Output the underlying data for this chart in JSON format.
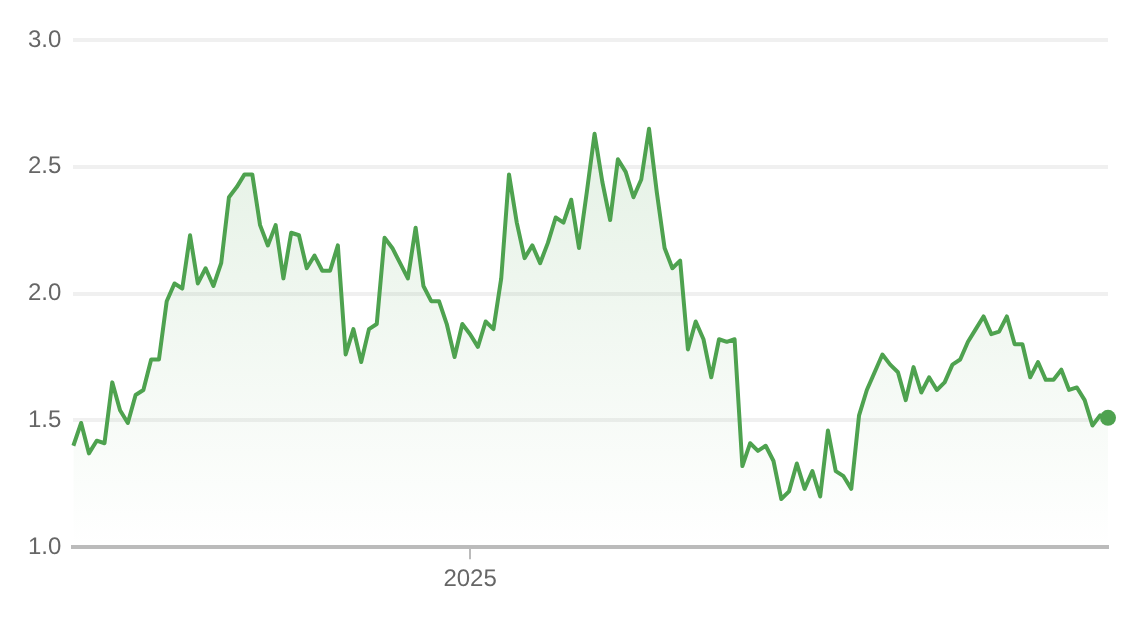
{
  "chart_data": {
    "type": "area",
    "color": "#4ea24f",
    "categories": [
      null,
      null,
      null,
      null,
      null,
      null,
      null,
      null,
      null,
      null,
      null,
      null,
      null,
      null,
      null,
      null,
      null,
      null,
      null,
      null,
      null,
      null,
      null,
      null,
      null,
      null,
      null,
      null,
      null,
      null,
      null,
      null,
      null,
      null,
      null,
      null,
      null,
      null,
      null,
      null,
      null,
      null,
      null,
      null,
      null,
      null,
      null,
      null,
      null,
      null,
      null,
      "2025",
      null,
      null,
      null,
      null,
      null,
      null,
      null,
      null,
      null,
      null,
      null,
      null,
      null,
      null,
      null,
      null,
      null,
      null,
      null,
      null,
      null,
      null,
      null,
      null,
      null,
      null,
      null,
      null,
      null,
      null,
      null,
      null,
      null,
      null,
      null,
      null,
      null,
      null,
      null,
      null,
      null,
      null,
      null,
      null,
      null,
      null,
      null,
      null,
      null,
      null,
      null,
      null,
      null,
      null,
      null,
      null,
      null,
      null,
      null,
      null,
      null,
      null,
      null,
      null,
      null,
      null,
      null,
      null,
      null,
      null,
      null,
      null,
      null,
      null,
      null,
      null,
      null,
      null,
      null,
      null,
      null,
      null
    ],
    "values": [
      1.4,
      1.49,
      1.37,
      1.42,
      1.41,
      1.65,
      1.54,
      1.49,
      1.6,
      1.62,
      1.74,
      1.74,
      1.97,
      2.04,
      2.02,
      2.23,
      2.04,
      2.1,
      2.03,
      2.12,
      2.38,
      2.42,
      2.47,
      2.47,
      2.27,
      2.19,
      2.27,
      2.06,
      2.24,
      2.23,
      2.1,
      2.15,
      2.09,
      2.09,
      2.19,
      1.76,
      1.86,
      1.73,
      1.86,
      1.88,
      2.22,
      2.18,
      2.12,
      2.06,
      2.26,
      2.03,
      1.97,
      1.97,
      1.88,
      1.75,
      1.88,
      1.84,
      1.79,
      1.89,
      1.86,
      2.06,
      2.47,
      2.28,
      2.14,
      2.19,
      2.12,
      2.2,
      2.3,
      2.28,
      2.37,
      2.18,
      2.4,
      2.63,
      2.44,
      2.29,
      2.53,
      2.48,
      2.38,
      2.45,
      2.65,
      2.4,
      2.18,
      2.1,
      2.13,
      1.78,
      1.89,
      1.82,
      1.67,
      1.82,
      1.81,
      1.82,
      1.32,
      1.41,
      1.38,
      1.4,
      1.34,
      1.19,
      1.22,
      1.33,
      1.23,
      1.3,
      1.2,
      1.46,
      1.3,
      1.28,
      1.23,
      1.52,
      1.62,
      1.69,
      1.76,
      1.72,
      1.69,
      1.58,
      1.71,
      1.61,
      1.67,
      1.62,
      1.65,
      1.72,
      1.74,
      1.81,
      1.86,
      1.91,
      1.84,
      1.85,
      1.91,
      1.8,
      1.8,
      1.67,
      1.73,
      1.66,
      1.66,
      1.7,
      1.62,
      1.63,
      1.58,
      1.48,
      1.52,
      1.51
    ],
    "ylim": [
      1.0,
      3.0
    ],
    "yticks": [
      {
        "value": 1.0,
        "label": "1.0"
      },
      {
        "value": 1.5,
        "label": "1.5"
      },
      {
        "value": 2.0,
        "label": "2.0"
      },
      {
        "value": 2.5,
        "label": "2.5"
      },
      {
        "value": 3.0,
        "label": "3.0"
      }
    ],
    "grid": "y"
  }
}
